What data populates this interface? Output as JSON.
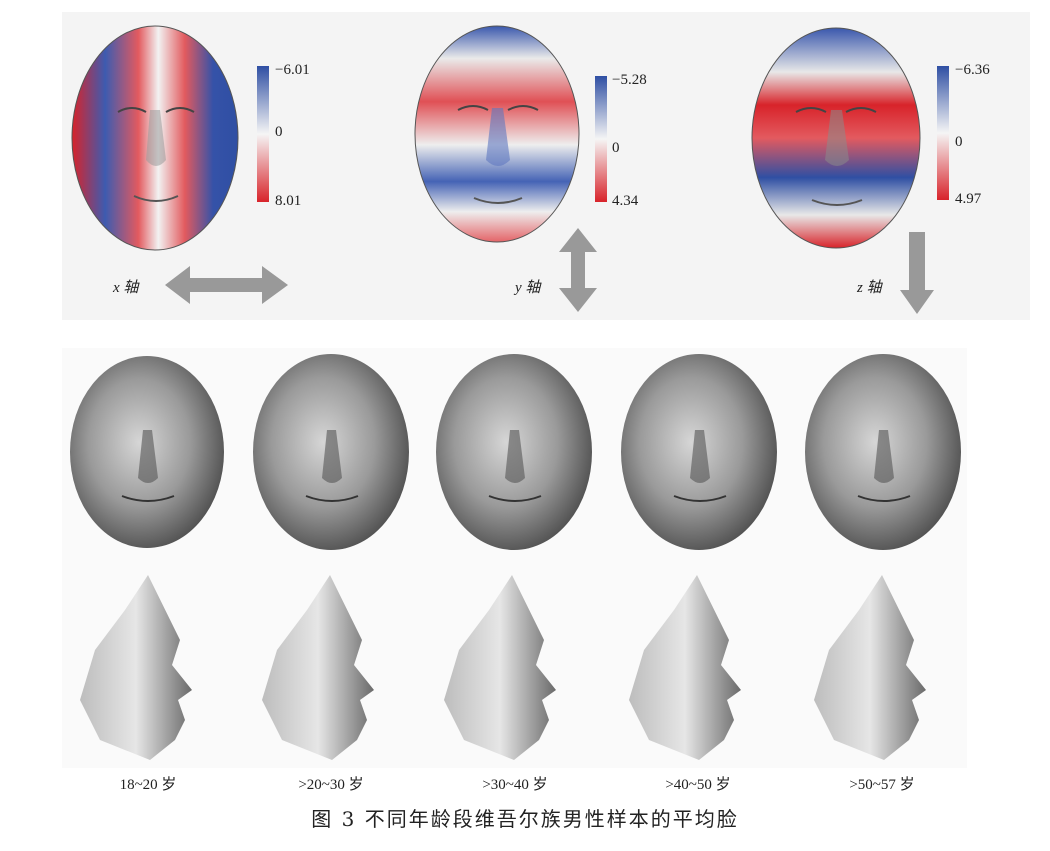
{
  "heatmaps": [
    {
      "axis_label": "x 轴",
      "max_label": "−6.01",
      "zero_label": "0",
      "min_label": "8.01",
      "arrow": "horizontal-double"
    },
    {
      "axis_label": "y 轴",
      "max_label": "−5.28",
      "zero_label": "0",
      "min_label": "4.34",
      "arrow": "vertical-double"
    },
    {
      "axis_label": "z 轴",
      "max_label": "−6.36",
      "zero_label": "0",
      "min_label": "4.97",
      "arrow": "down"
    }
  ],
  "age_groups": [
    {
      "label": "18~20 岁"
    },
    {
      "label": ">20~30 岁"
    },
    {
      "label": ">30~40 岁"
    },
    {
      "label": ">40~50 岁"
    },
    {
      "label": ">50~57 岁"
    }
  ],
  "caption": "图 3  不同年龄段维吾尔族男性样本的平均脸",
  "colors": {
    "blue": "#2f4fa3",
    "red": "#d8232a",
    "white": "#f5f5f5",
    "gray": "#8a8a8a",
    "arrow": "#999999"
  }
}
